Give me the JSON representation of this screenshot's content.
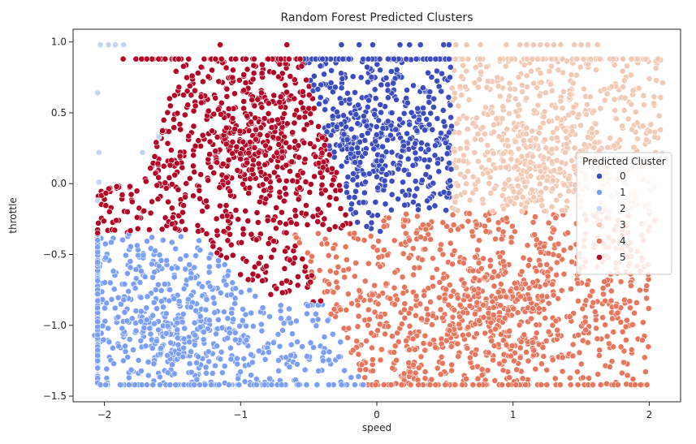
{
  "chart_data": {
    "type": "scatter",
    "title": "Random Forest Predicted Clusters",
    "xlabel": "speed",
    "ylabel": "throttle",
    "xlim": [
      -2.23,
      2.23
    ],
    "ylim": [
      -1.54,
      1.09
    ],
    "x_ticks": [
      -2,
      -1,
      0,
      1,
      2
    ],
    "x_tick_labels": [
      "−2",
      "−1",
      "0",
      "1",
      "2"
    ],
    "y_ticks": [
      -1.5,
      -1.0,
      -0.5,
      0.0,
      0.5,
      1.0
    ],
    "y_tick_labels": [
      "−1.5",
      "−1.0",
      "−0.5",
      "0.0",
      "0.5",
      "1.0"
    ],
    "grid": false,
    "legend": {
      "title": "Predicted Cluster",
      "placement": "center-right",
      "entries": [
        "0",
        "1",
        "2",
        "3",
        "4",
        "5"
      ]
    },
    "series": [
      {
        "name": "0",
        "color": "#3b4cc0",
        "region": "speed -0.55..0.55, throttle -0.45..0.88; top row at 0.98 near speed -0.1..0.5"
      },
      {
        "name": "1",
        "color": "#7b9ff9",
        "region": "speed -2.05..-0.25, throttle -1.42..-0.35 (lower-left), sparse up to 0.0"
      },
      {
        "name": "2",
        "color": "#c0d4f5",
        "region": "speed ≈ -2.05, throttle -1.42..0.98, sparse"
      },
      {
        "name": "3",
        "color": "#f2c9b4",
        "region": "speed 0.55..2.1, throttle -0.85..0.88 (upper-right); row at 0.98 near 0.6..1.6"
      },
      {
        "name": "4",
        "color": "#e8765c",
        "region": "speed -0.3..2.0, throttle -1.42..-0.2 (lower-right)"
      },
      {
        "name": "5",
        "color": "#b40426",
        "region": "speed -2.0..0.0, throttle -0.85..0.88 (upper-left wedge); few at 0.98"
      }
    ]
  },
  "ui": {
    "marker_edge": "#ffffff",
    "axes_color": "#262626"
  }
}
